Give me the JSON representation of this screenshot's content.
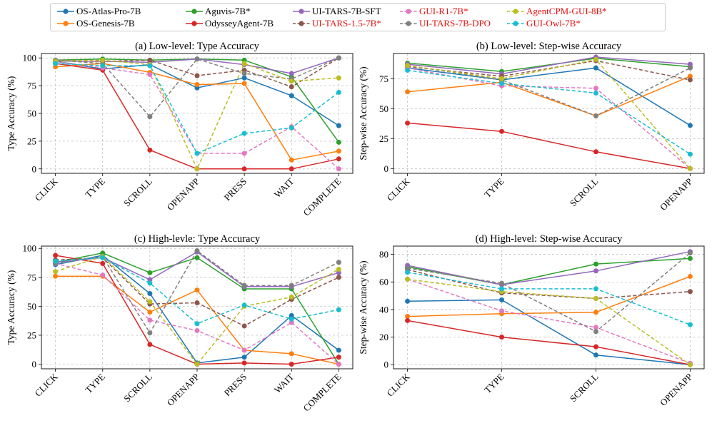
{
  "legend": [
    {
      "name": "OS-Atlas-Pro-7B",
      "color": "#1f77b4",
      "dash": false,
      "label_color": "#000000"
    },
    {
      "name": "OS-Genesis-7B",
      "color": "#ff7f0e",
      "dash": false,
      "label_color": "#000000"
    },
    {
      "name": "Aguvis-7B*",
      "color": "#2ca02c",
      "dash": false,
      "label_color": "#000000"
    },
    {
      "name": "OdysseyAgent-7B",
      "color": "#d62728",
      "dash": false,
      "label_color": "#000000"
    },
    {
      "name": "UI-TARS-7B-SFT",
      "color": "#9467bd",
      "dash": false,
      "label_color": "#000000"
    },
    {
      "name": "UI-TARS-1.5-7B*",
      "color": "#8c564b",
      "dash": true,
      "label_color": "#e8110f"
    },
    {
      "name": "GUI-R1-7B*",
      "color": "#e377c2",
      "dash": true,
      "label_color": "#e8110f"
    },
    {
      "name": "UI-TARS-7B-DPO",
      "color": "#7f7f7f",
      "dash": true,
      "label_color": "#e8110f"
    },
    {
      "name": "AgentCPM-GUI-8B*",
      "color": "#bcbd22",
      "dash": true,
      "label_color": "#e8110f"
    },
    {
      "name": "GUI-Owl-7B*",
      "color": "#17becf",
      "dash": true,
      "label_color": "#e8110f"
    }
  ],
  "chart_data": [
    {
      "type": "line",
      "title": "(a) Low-level: Type Accuracy",
      "ylabel": "Type Accuracy (%)",
      "categories": [
        "CLICK",
        "TYPE",
        "SCROLL",
        "OPENAPP",
        "PRESS",
        "WAIT",
        "COMPLETE"
      ],
      "ylim": [
        -4,
        104
      ],
      "yticks": [
        0,
        25,
        50,
        75,
        100
      ],
      "grid": true,
      "series": [
        {
          "name": "OS-Atlas-Pro-7B",
          "values": [
            97,
            90,
            94,
            73,
            82,
            66,
            39
          ]
        },
        {
          "name": "OS-Genesis-7B",
          "values": [
            92,
            95,
            87,
            76,
            77,
            8,
            16
          ]
        },
        {
          "name": "Aguvis-7B*",
          "values": [
            98,
            99,
            98,
            99,
            98,
            83,
            24
          ]
        },
        {
          "name": "OdysseyAgent-7B",
          "values": [
            95,
            89,
            17,
            0,
            0,
            0,
            9
          ]
        },
        {
          "name": "UI-TARS-7B-SFT",
          "values": [
            97,
            97,
            96,
            99,
            94,
            86,
            100
          ]
        },
        {
          "name": "UI-TARS-1.5-7B*",
          "values": [
            98,
            97,
            98,
            84,
            89,
            74,
            100
          ]
        },
        {
          "name": "GUI-R1-7B*",
          "values": [
            97,
            91,
            85,
            14,
            14,
            38,
            0
          ]
        },
        {
          "name": "UI-TARS-7B-DPO",
          "values": [
            98,
            95,
            47,
            99,
            86,
            81,
            100
          ]
        },
        {
          "name": "AgentCPM-GUI-8B*",
          "values": [
            97,
            98,
            94,
            0,
            95,
            79,
            82
          ]
        },
        {
          "name": "GUI-Owl-7B*",
          "values": [
            95,
            93,
            93,
            14,
            32,
            37,
            69
          ]
        }
      ]
    },
    {
      "type": "line",
      "title": "(b) Low-level: Step-wise Accuracy",
      "ylabel": "Step-wise Accuracy (%)",
      "categories": [
        "CLICK",
        "TYPE",
        "SCROLL",
        "OPENAPP"
      ],
      "ylim": [
        -4,
        96
      ],
      "yticks": [
        0,
        25,
        50,
        75
      ],
      "grid": true,
      "series": [
        {
          "name": "OS-Atlas-Pro-7B",
          "values": [
            84,
            74,
            84,
            36
          ]
        },
        {
          "name": "OS-Genesis-7B",
          "values": [
            64,
            72,
            44,
            77
          ]
        },
        {
          "name": "Aguvis-7B*",
          "values": [
            88,
            81,
            92,
            85
          ]
        },
        {
          "name": "OdysseyAgent-7B",
          "values": [
            38,
            31,
            14,
            0
          ]
        },
        {
          "name": "UI-TARS-7B-SFT",
          "values": [
            87,
            79,
            93,
            87
          ]
        },
        {
          "name": "UI-TARS-1.5-7B*",
          "values": [
            85,
            77,
            90,
            74
          ]
        },
        {
          "name": "GUI-R1-7B*",
          "values": [
            84,
            69,
            67,
            0
          ]
        },
        {
          "name": "UI-TARS-7B-DPO",
          "values": [
            86,
            74,
            44,
            84
          ]
        },
        {
          "name": "AgentCPM-GUI-8B*",
          "values": [
            86,
            75,
            91,
            0
          ]
        },
        {
          "name": "GUI-Owl-7B*",
          "values": [
            82,
            71,
            63,
            12
          ]
        }
      ]
    },
    {
      "type": "line",
      "title": "(c) High-levle: Type Accuracy",
      "ylabel": "Type Accuracy (%)",
      "categories": [
        "CLICK",
        "TYPE",
        "SCROLL",
        "OPENAPP",
        "PRESS",
        "WAIT",
        "COMPLETE"
      ],
      "ylim": [
        -4,
        102
      ],
      "yticks": [
        0,
        25,
        50,
        75,
        100
      ],
      "grid": true,
      "series": [
        {
          "name": "OS-Atlas-Pro-7B",
          "values": [
            86,
            94,
            61,
            1,
            6,
            42,
            12
          ]
        },
        {
          "name": "OS-Genesis-7B",
          "values": [
            76,
            76,
            45,
            64,
            12,
            9,
            0
          ]
        },
        {
          "name": "Aguvis-7B*",
          "values": [
            88,
            96,
            79,
            92,
            65,
            65,
            0
          ]
        },
        {
          "name": "OdysseyAgent-7B",
          "values": [
            94,
            87,
            17,
            0,
            1,
            0,
            6
          ]
        },
        {
          "name": "UI-TARS-7B-SFT",
          "values": [
            88,
            92,
            73,
            97,
            67,
            67,
            79
          ]
        },
        {
          "name": "UI-TARS-1.5-7B*",
          "values": [
            90,
            92,
            52,
            53,
            33,
            56,
            75
          ]
        },
        {
          "name": "GUI-R1-7B*",
          "values": [
            87,
            77,
            38,
            29,
            12,
            36,
            0
          ]
        },
        {
          "name": "UI-TARS-7B-DPO",
          "values": [
            87,
            93,
            27,
            98,
            68,
            68,
            88
          ]
        },
        {
          "name": "AgentCPM-GUI-8B*",
          "values": [
            80,
            93,
            54,
            0,
            50,
            58,
            82
          ]
        },
        {
          "name": "GUI-Owl-7B*",
          "values": [
            89,
            92,
            70,
            35,
            51,
            39,
            47
          ]
        }
      ]
    },
    {
      "type": "line",
      "title": "(d) High-level: Step-wise Accuracy",
      "ylabel": "Step-wise Accuracy (%)",
      "categories": [
        "CLICK",
        "TYPE",
        "SCROLL",
        "OPENAPP"
      ],
      "ylim": [
        -3,
        86
      ],
      "yticks": [
        0,
        20,
        40,
        60,
        80
      ],
      "grid": true,
      "series": [
        {
          "name": "OS-Atlas-Pro-7B",
          "values": [
            46,
            47,
            7,
            0
          ]
        },
        {
          "name": "OS-Genesis-7B",
          "values": [
            35,
            37,
            38,
            64
          ]
        },
        {
          "name": "Aguvis-7B*",
          "values": [
            71,
            58,
            73,
            77
          ]
        },
        {
          "name": "OdysseyAgent-7B",
          "values": [
            32,
            20,
            13,
            0
          ]
        },
        {
          "name": "UI-TARS-7B-SFT",
          "values": [
            72,
            58,
            68,
            82
          ]
        },
        {
          "name": "UI-TARS-1.5-7B*",
          "values": [
            69,
            52,
            48,
            53
          ]
        },
        {
          "name": "GUI-R1-7B*",
          "values": [
            62,
            39,
            27,
            1
          ]
        },
        {
          "name": "UI-TARS-7B-DPO",
          "values": [
            70,
            59,
            24,
            81
          ]
        },
        {
          "name": "AgentCPM-GUI-8B*",
          "values": [
            62,
            53,
            48,
            0
          ]
        },
        {
          "name": "GUI-Owl-7B*",
          "values": [
            67,
            55,
            55,
            29
          ]
        }
      ]
    }
  ]
}
